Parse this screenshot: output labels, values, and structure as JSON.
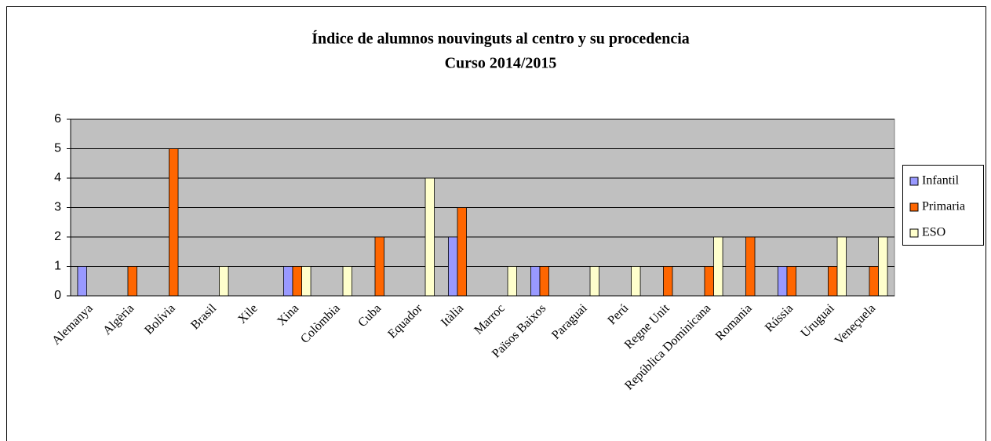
{
  "chart_data": {
    "type": "bar",
    "title": "Índice de alumnos nouvinguts al centro y su procedencia",
    "subtitle": "Curso 2014/2015",
    "categories": [
      "Alemanya",
      "Algèria",
      "Bolívia",
      "Brasil",
      "Xile",
      "Xina",
      "Colòmbia",
      "Cuba",
      "Equador",
      "Itàlia",
      "Marroc",
      "Països Baixos",
      "Paraguai",
      "Perú",
      "Regne Unit",
      "República Dominicana",
      "Romania",
      "Rússia",
      "Uruguai",
      "Veneçuela"
    ],
    "series": [
      {
        "name": "Infantil",
        "color": "#9999ff",
        "values": [
          1,
          0,
          0,
          0,
          0,
          1,
          0,
          0,
          0,
          2,
          0,
          1,
          0,
          0,
          0,
          0,
          0,
          1,
          0,
          0
        ]
      },
      {
        "name": "Primaria",
        "color": "#ff6600",
        "values": [
          0,
          1,
          5,
          0,
          0,
          1,
          0,
          2,
          0,
          3,
          0,
          1,
          0,
          0,
          1,
          1,
          2,
          1,
          1,
          1
        ]
      },
      {
        "name": "ESO",
        "color": "#ffffcc",
        "values": [
          0,
          0,
          0,
          1,
          0,
          1,
          1,
          0,
          4,
          0,
          1,
          0,
          1,
          1,
          0,
          2,
          0,
          0,
          2,
          2
        ]
      }
    ],
    "ylim": [
      0,
      6
    ],
    "yticks": [
      0,
      1,
      2,
      3,
      4,
      5,
      6
    ],
    "grid": true,
    "legend": "right"
  }
}
